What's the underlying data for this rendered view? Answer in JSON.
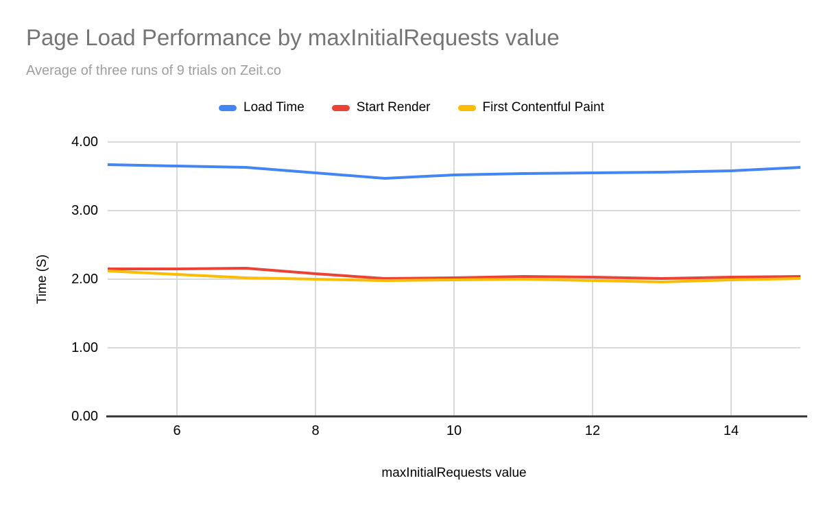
{
  "chart_data": {
    "type": "line",
    "title": "Page Load Performance by maxInitialRequests value",
    "subtitle": "Average of three runs of 9 trials on Zeit.co",
    "xlabel": "maxInitialRequests value",
    "ylabel": "Time (S)",
    "xlim": [
      5,
      15
    ],
    "ylim": [
      0,
      4
    ],
    "grid": true,
    "legend_position": "top",
    "x": [
      5,
      6,
      7,
      8,
      9,
      10,
      11,
      12,
      13,
      14,
      15
    ],
    "series": [
      {
        "name": "Load Time",
        "color": "#4285F4",
        "values": [
          3.67,
          3.65,
          3.63,
          3.55,
          3.47,
          3.52,
          3.54,
          3.55,
          3.56,
          3.58,
          3.63
        ]
      },
      {
        "name": "Start Render",
        "color": "#EA4335",
        "values": [
          2.15,
          2.15,
          2.16,
          2.08,
          2.01,
          2.02,
          2.04,
          2.03,
          2.01,
          2.03,
          2.04
        ]
      },
      {
        "name": "First Contentful Paint",
        "color": "#FBBC04",
        "values": [
          2.12,
          2.07,
          2.02,
          2.0,
          1.98,
          1.99,
          2.0,
          1.98,
          1.96,
          1.99,
          2.01
        ]
      }
    ],
    "x_ticks": [
      {
        "value": 6,
        "label": "6"
      },
      {
        "value": 8,
        "label": "8"
      },
      {
        "value": 10,
        "label": "10"
      },
      {
        "value": 12,
        "label": "12"
      },
      {
        "value": 14,
        "label": "14"
      }
    ],
    "y_ticks": [
      {
        "value": 0,
        "label": "0.00"
      },
      {
        "value": 1,
        "label": "1.00"
      },
      {
        "value": 2,
        "label": "2.00"
      },
      {
        "value": 3,
        "label": "3.00"
      },
      {
        "value": 4,
        "label": "4.00"
      }
    ],
    "colors": {
      "title": "#757575",
      "subtitle": "#9e9e9e",
      "tick_text": "#000000",
      "gridline": "#d9d9d9",
      "axis_line": "#333333"
    }
  }
}
